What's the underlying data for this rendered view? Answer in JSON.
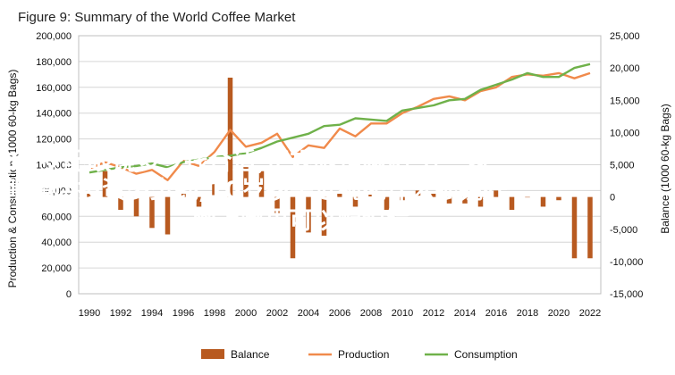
{
  "chart_data": {
    "type": "bar+line",
    "title": "Figure 9: Summary of the World Coffee Market",
    "ylabel_left": "Production & Consumption (1000 60-kg Bags)",
    "ylabel_right": "Balance (1000 60-kg Bags)",
    "left_ylim": [
      0,
      200000
    ],
    "left_ticks": [
      "0",
      "20,000",
      "40,000",
      "60,000",
      "80,000",
      "100,000",
      "120,000",
      "140,000",
      "160,000",
      "180,000",
      "200,000"
    ],
    "right_ylim": [
      -15000,
      25000
    ],
    "right_ticks": [
      "-15,000",
      "-10,000",
      "-5,000",
      "0",
      "5,000",
      "10,000",
      "15,000",
      "20,000",
      "25,000"
    ],
    "x_ticks": [
      "1990",
      "1992",
      "1994",
      "1996",
      "1998",
      "2000",
      "2002",
      "2004",
      "2006",
      "2008",
      "2010",
      "2012",
      "2014",
      "2016",
      "2018",
      "2020",
      "2022"
    ],
    "x": [
      1990,
      1991,
      1992,
      1993,
      1994,
      1995,
      1996,
      1997,
      1998,
      1999,
      2000,
      2001,
      2002,
      2003,
      2004,
      2005,
      2006,
      2007,
      2008,
      2009,
      2010,
      2011,
      2012,
      2013,
      2014,
      2015,
      2016,
      2017,
      2018,
      2019,
      2020,
      2021,
      2022
    ],
    "grid": true,
    "legend_position": "bottom",
    "series": [
      {
        "name": "Balance",
        "type": "bar",
        "axis": "right",
        "color": "#b85a20",
        "values": [
          500,
          4000,
          -2000,
          -3000,
          -4800,
          -5800,
          500,
          -1500,
          2000,
          18500,
          5000,
          4000,
          -2500,
          -9500,
          -5500,
          -6000,
          500,
          -1500,
          500,
          -2000,
          -500,
          1000,
          500,
          -1000,
          -1000,
          -1500,
          1000,
          -2000,
          0,
          -1500,
          -500,
          -9500,
          -9500
        ]
      },
      {
        "name": "Production",
        "type": "line",
        "axis": "left",
        "color": "#f08a4b",
        "values": [
          97000,
          102000,
          98000,
          93000,
          96000,
          88000,
          103000,
          99000,
          110000,
          127000,
          114000,
          117000,
          124000,
          106000,
          115000,
          113000,
          128000,
          122000,
          132000,
          132000,
          140000,
          145000,
          151000,
          153000,
          150000,
          157000,
          160000,
          168000,
          170000,
          169000,
          171000,
          167000,
          171000
        ]
      },
      {
        "name": "Consumption",
        "type": "line",
        "axis": "left",
        "color": "#6fb14a",
        "values": [
          94000,
          96000,
          98000,
          99000,
          101000,
          98000,
          102000,
          104000,
          106000,
          107000,
          109000,
          113000,
          118000,
          121000,
          124000,
          130000,
          131000,
          136000,
          135000,
          134000,
          142000,
          144000,
          146000,
          150000,
          151000,
          158000,
          162000,
          166000,
          171000,
          168000,
          168000,
          175000,
          178000
        ]
      }
    ]
  },
  "overlay_text": {
    "line1": "12岁配眼镜多少钱合适,正规眼镜网站,开一家",
    "line2": "眼镜店投资多少钱,10岁孩子近视配什么眼镜好",
    "line3": ",网上哪里可以配眼镜"
  }
}
